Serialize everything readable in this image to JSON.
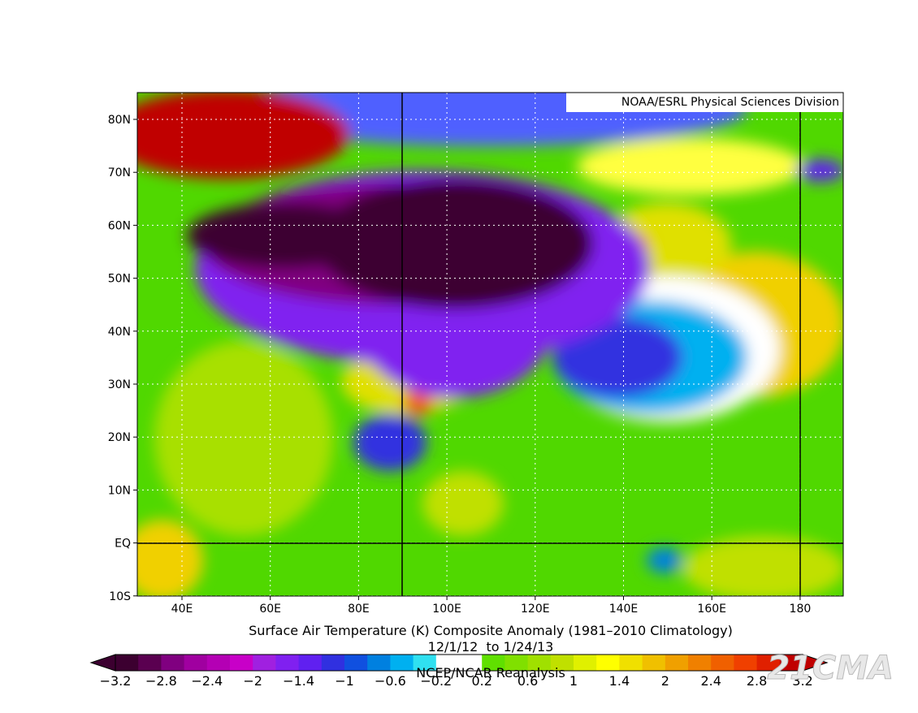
{
  "map": {
    "credit": "NOAA/ESRL Physical Sciences Division",
    "lat_labels": [
      "80N",
      "70N",
      "60N",
      "50N",
      "40N",
      "30N",
      "20N",
      "10N",
      "EQ",
      "10S"
    ],
    "lon_labels": [
      "40E",
      "60E",
      "80E",
      "100E",
      "120E",
      "140E",
      "160E",
      "180"
    ]
  },
  "caption": {
    "title": "Surface Air Temperature (K) Composite Anomaly (1981–2010 Climatology)",
    "dates": "12/1/12  to 1/24/13",
    "source": "NCEP/NCAR Reanalysis"
  },
  "colorbar": {
    "labels": [
      "−3.2",
      "−2.8",
      "−2.4",
      "−2",
      "−1.4",
      "−1",
      "−0.6",
      "−0.2",
      "0.2",
      "0.6",
      "1",
      "1.4",
      "2",
      "2.4",
      "2.8",
      "3.2"
    ],
    "colors": [
      "#3c0030",
      "#5a0050",
      "#800080",
      "#a000a0",
      "#b400b4",
      "#c800c8",
      "#a020e0",
      "#8020f0",
      "#6020f0",
      "#3030e0",
      "#1050e0",
      "#0080e0",
      "#00b0f0",
      "#30e0f0",
      "#ffffff",
      "#ffffff",
      "#60e000",
      "#80e000",
      "#a0e000",
      "#c0e000",
      "#e0f000",
      "#ffff00",
      "#f0e000",
      "#f0c000",
      "#f0a000",
      "#f08000",
      "#f06000",
      "#f04000",
      "#e02000",
      "#c00000"
    ]
  },
  "watermark": "21CMA"
}
